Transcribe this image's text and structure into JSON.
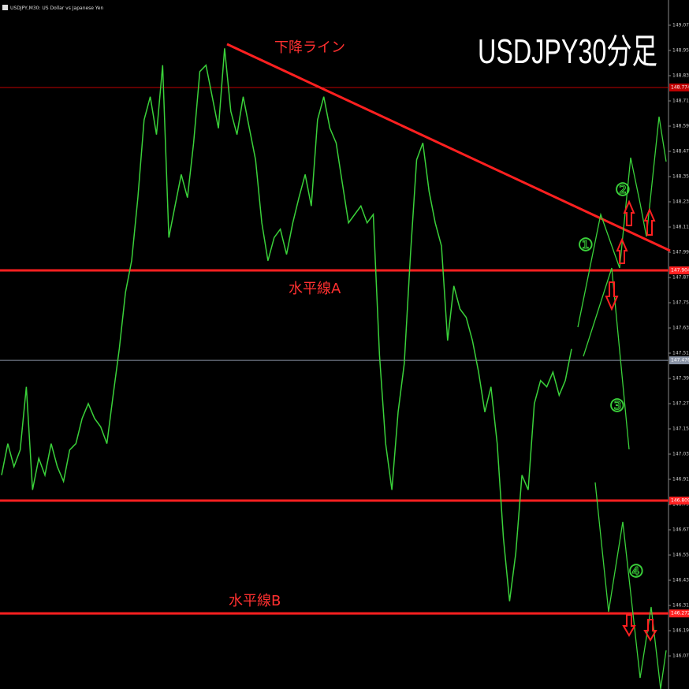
{
  "chart_data": {
    "type": "line",
    "header": "USDJPY,M30: US Dollar vs Japanese Yen",
    "title": "USDJPY30分足",
    "annotations": [
      "下降ライン",
      "水平線A",
      "水平線B",
      "①",
      "②",
      "③",
      "④"
    ],
    "color": "#3ad13a",
    "values": [
      146.93,
      147.08,
      146.97,
      147.05,
      147.35,
      146.86,
      147.01,
      146.93,
      147.08,
      146.97,
      146.9,
      147.05,
      147.08,
      147.2,
      147.27,
      147.2,
      147.16,
      147.08,
      147.31,
      147.53,
      147.8,
      147.95,
      148.25,
      148.62,
      148.73,
      148.55,
      148.88,
      148.06,
      148.21,
      148.36,
      148.25,
      148.51,
      148.85,
      148.88,
      148.73,
      148.58,
      148.96,
      148.66,
      148.55,
      148.73,
      148.58,
      148.43,
      148.13,
      147.95,
      148.06,
      148.1,
      147.98,
      148.13,
      148.25,
      148.36,
      148.21,
      148.62,
      148.73,
      148.58,
      148.51,
      148.32,
      148.13,
      148.17,
      148.21,
      148.13,
      148.17,
      147.5,
      147.08,
      146.86,
      147.23,
      147.46,
      147.98,
      148.43,
      148.51,
      148.28,
      148.13,
      148.02,
      147.57,
      147.83,
      147.72,
      147.68,
      147.57,
      147.42,
      147.23,
      147.35,
      147.08,
      146.63,
      146.33,
      146.56,
      146.93,
      146.86,
      147.27,
      147.38,
      147.35,
      147.42,
      147.31,
      147.38,
      147.53
    ],
    "ylim": [
      146.0,
      149.19
    ],
    "yticks": [
      {
        "value": 149.07,
        "label": "149.070"
      },
      {
        "value": 148.95,
        "label": "148.950"
      },
      {
        "value": 148.83,
        "label": "148.830"
      },
      {
        "value": 148.71,
        "label": "148.710"
      },
      {
        "value": 148.59,
        "label": "148.590"
      },
      {
        "value": 148.47,
        "label": "148.470"
      },
      {
        "value": 148.35,
        "label": "148.350"
      },
      {
        "value": 148.23,
        "label": "148.230"
      },
      {
        "value": 148.11,
        "label": "148.110"
      },
      {
        "value": 147.99,
        "label": "147.990"
      },
      {
        "value": 147.87,
        "label": "147.870"
      },
      {
        "value": 147.75,
        "label": "147.750"
      },
      {
        "value": 147.63,
        "label": "147.630"
      },
      {
        "value": 147.51,
        "label": "147.510"
      },
      {
        "value": 147.39,
        "label": "147.390"
      },
      {
        "value": 147.27,
        "label": "147.270"
      },
      {
        "value": 147.15,
        "label": "147.150"
      },
      {
        "value": 147.03,
        "label": "147.030"
      },
      {
        "value": 146.91,
        "label": "146.910"
      },
      {
        "value": 146.79,
        "label": "146.790"
      },
      {
        "value": 146.67,
        "label": "146.670"
      },
      {
        "value": 146.55,
        "label": "146.550"
      },
      {
        "value": 146.43,
        "label": "146.430"
      },
      {
        "value": 146.31,
        "label": "146.310"
      },
      {
        "value": 146.19,
        "label": "146.190"
      },
      {
        "value": 146.07,
        "label": "146.070"
      }
    ],
    "hlines": [
      {
        "value": 148.774,
        "label": "148.774",
        "color": "#c00000",
        "width": 1
      },
      {
        "value": 147.904,
        "label": "147.904",
        "color": "#ff2020",
        "width": 3
      },
      {
        "value": 147.476,
        "label": "147.476",
        "color": "#8a94a6",
        "width": 1
      },
      {
        "value": 146.809,
        "label": "146.809",
        "color": "#ff2020",
        "width": 3
      },
      {
        "value": 146.272,
        "label": "146.272",
        "color": "#ff2020",
        "width": 3
      }
    ]
  }
}
